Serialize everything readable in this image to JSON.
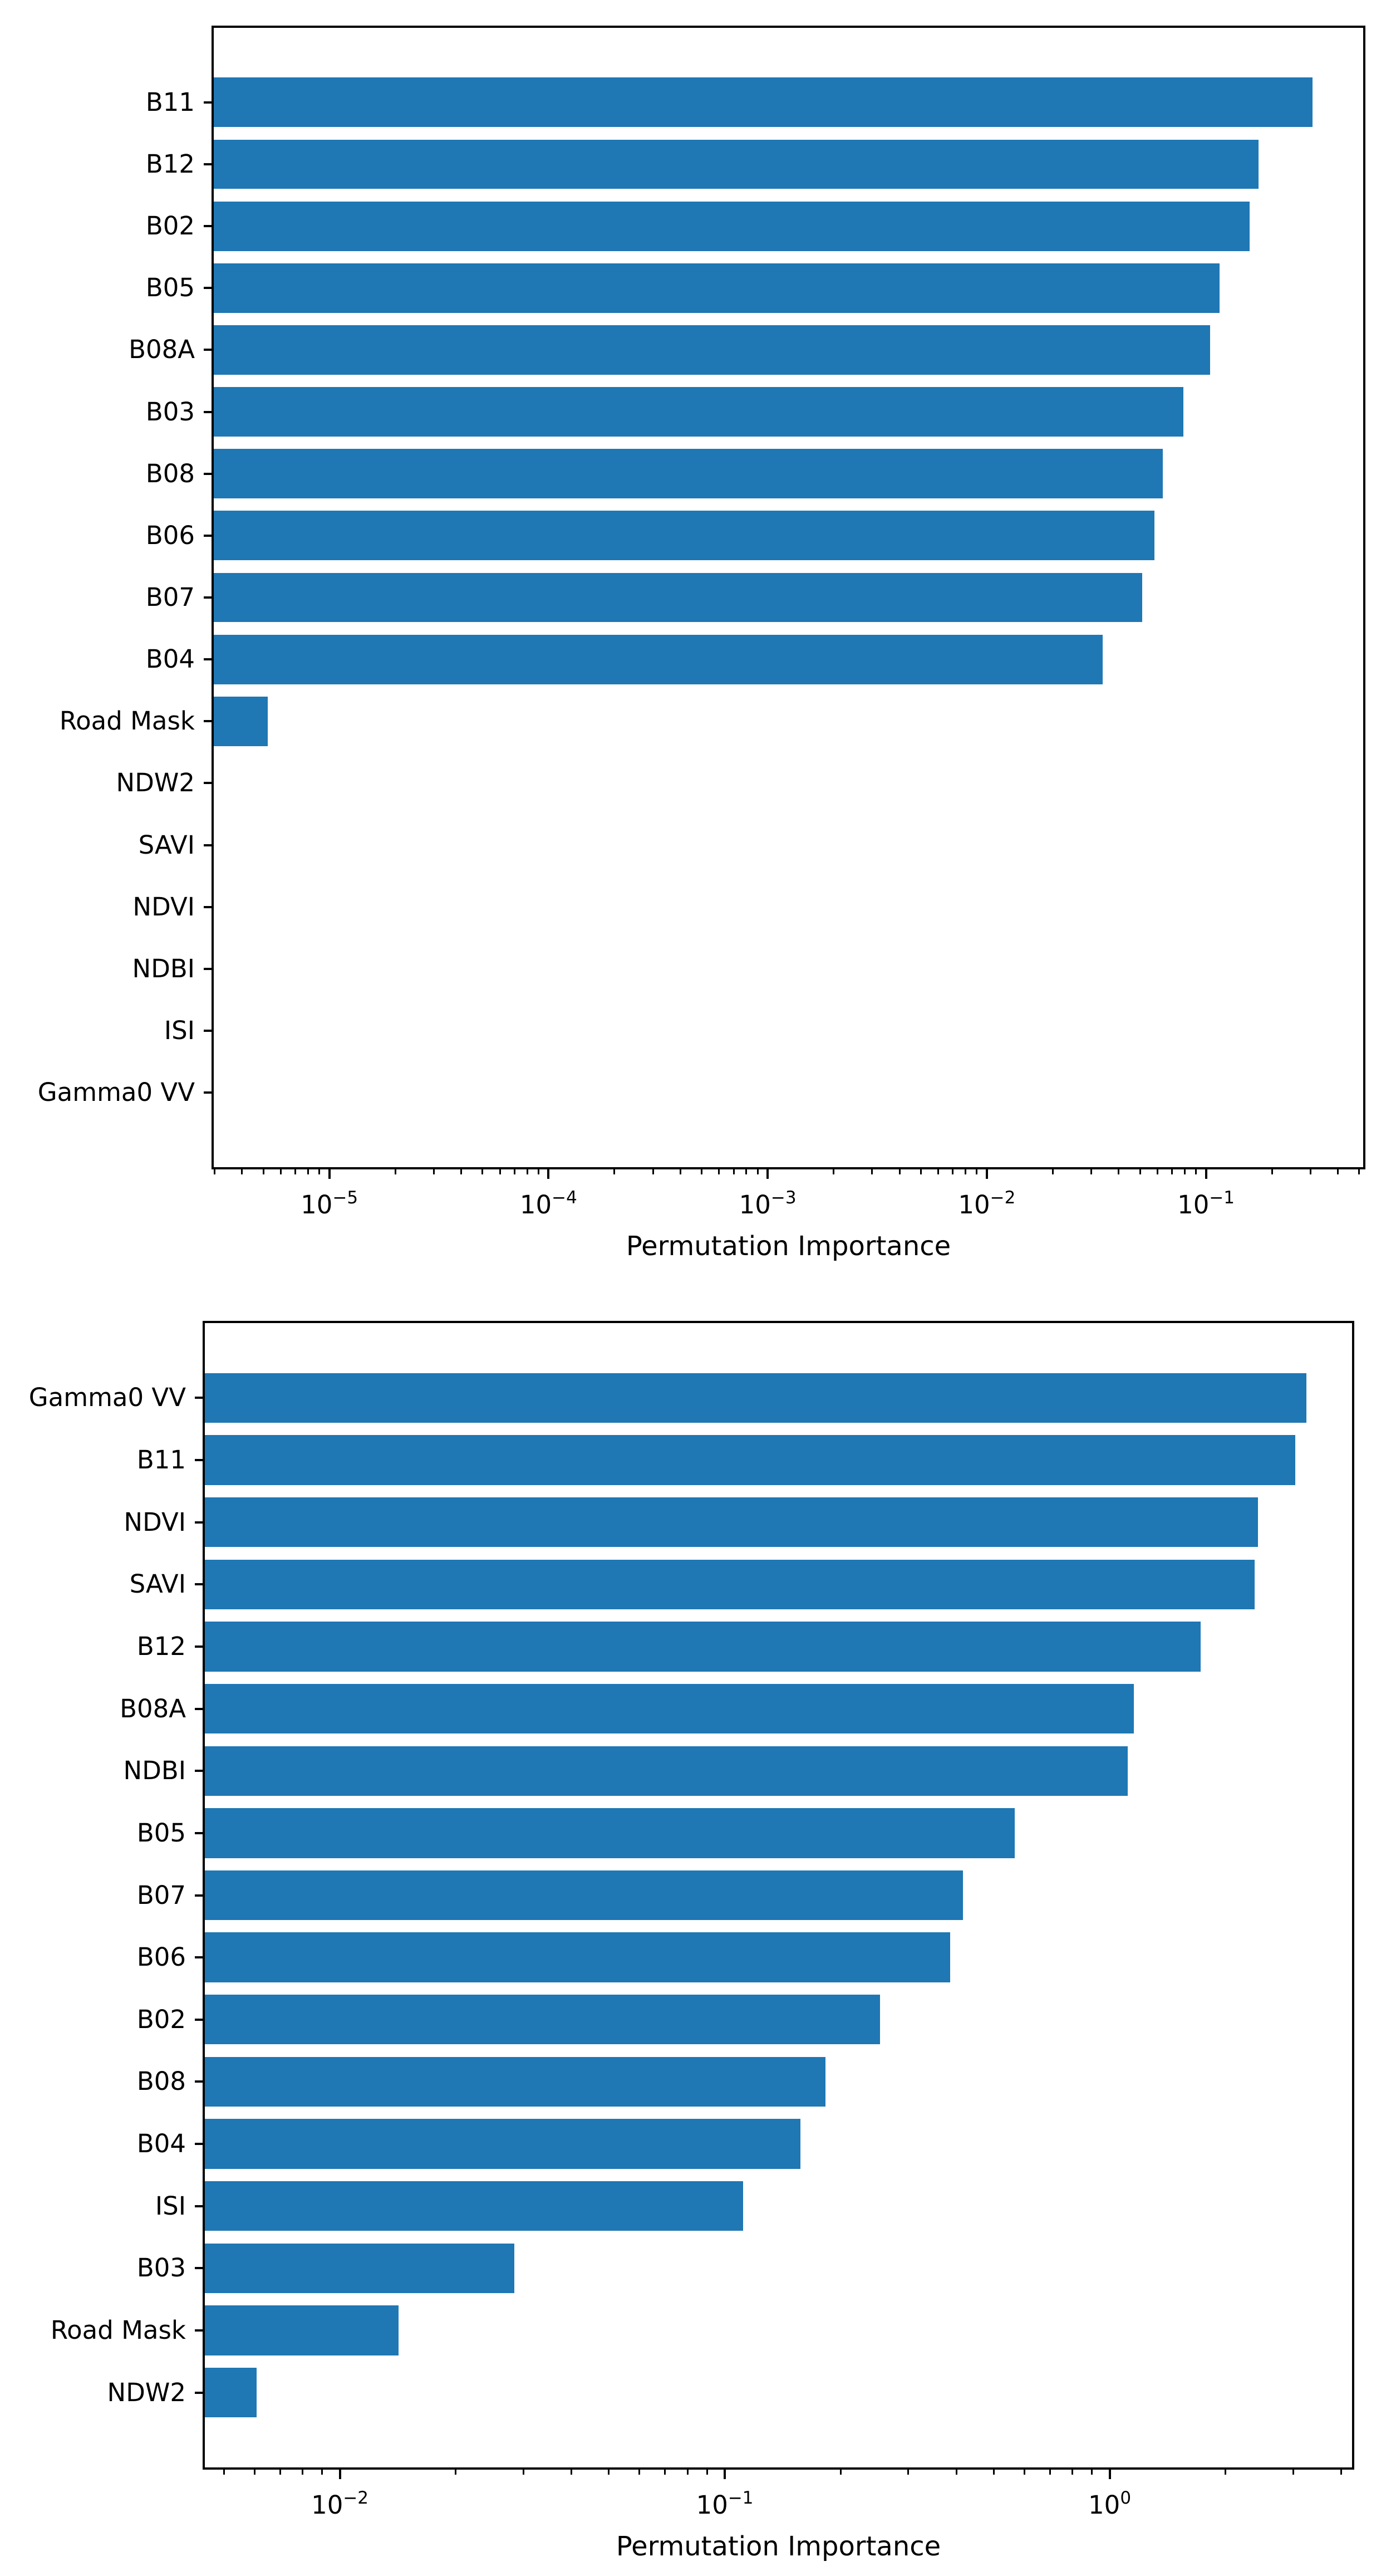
{
  "figure": {
    "background": "#ffffff",
    "text_color": "#000000"
  },
  "chart_data": [
    {
      "type": "bar",
      "orientation": "horizontal",
      "xscale": "log",
      "xlabel": "Permutation Importance",
      "ylabel": "",
      "title": "",
      "grid": false,
      "legend": "none",
      "bar_color": "#1f77b4",
      "categories": [
        "B11",
        "B12",
        "B02",
        "B05",
        "B08A",
        "B03",
        "B08",
        "B06",
        "B07",
        "B04",
        "Road Mask",
        "NDW2",
        "SAVI",
        "NDVI",
        "NDBI",
        "ISI",
        "Gamma0 VV"
      ],
      "values": [
        0.3,
        0.17,
        0.155,
        0.113,
        0.102,
        0.077,
        0.062,
        0.057,
        0.05,
        0.033,
        5.1e-06,
        0,
        0,
        0,
        0,
        0,
        0
      ],
      "xlim": [
        2.9e-06,
        0.534
      ],
      "x_major_tick_exponents": [
        -5,
        -4,
        -3,
        -2,
        -1
      ]
    },
    {
      "type": "bar",
      "orientation": "horizontal",
      "xscale": "log",
      "xlabel": "Permutation Importance",
      "ylabel": "",
      "title": "",
      "grid": false,
      "legend": "none",
      "bar_color": "#1f77b4",
      "categories": [
        "Gamma0 VV",
        "B11",
        "NDVI",
        "SAVI",
        "B12",
        "B08A",
        "NDBI",
        "B05",
        "B07",
        "B06",
        "B02",
        "B08",
        "B04",
        "ISI",
        "B03",
        "Road Mask",
        "NDW2"
      ],
      "values": [
        3.2,
        3.0,
        2.4,
        2.35,
        1.7,
        1.14,
        1.1,
        0.56,
        0.41,
        0.38,
        0.25,
        0.18,
        0.155,
        0.11,
        0.028,
        0.014,
        0.006
      ],
      "xlim": [
        0.0044,
        4.32
      ],
      "x_major_tick_exponents": [
        -2,
        -1,
        0
      ]
    }
  ]
}
